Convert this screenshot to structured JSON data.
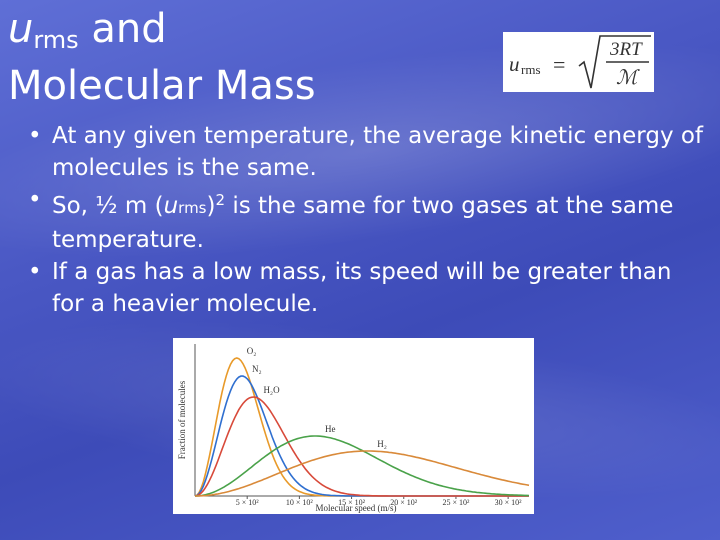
{
  "title": {
    "symbol": "u",
    "symbol_subscript": "rms",
    "line1_rest": " and",
    "line2": "Molecular Mass"
  },
  "formula": {
    "lhs": "u",
    "lhs_sub": "rms",
    "equals": "=",
    "numerator": "3RT",
    "denominator": "ℳ"
  },
  "bullets": {
    "b1": "At any given temperature, the average kinetic energy of molecules is the same.",
    "b2_a": "So, ½ m (",
    "b2_u": "u",
    "b2_sub": "rms",
    "b2_close": ")",
    "b2_sup": "2",
    "b2_b": " is the same for two gases at the same temperature.",
    "b3": "If a gas has a low mass, its speed will be greater than for a heavier molecule."
  },
  "chart_data": {
    "type": "line",
    "xlabel": "Molecular speed (m/s)",
    "ylabel": "Fraction of molecules",
    "x_ticks": [
      "5 × 10²",
      "10 × 10²",
      "15 × 10²",
      "20 × 10²",
      "25 × 10²",
      "30 × 10²"
    ],
    "xlim": [
      0,
      3200
    ],
    "ylim": [
      0,
      1
    ],
    "series": [
      {
        "name": "O₂",
        "color": "#e89a2a",
        "peak_x": 400,
        "peak_y": 0.92,
        "width": 260
      },
      {
        "name": "N₂",
        "color": "#2f6fd0",
        "peak_x": 450,
        "peak_y": 0.8,
        "width": 290
      },
      {
        "name": "H₂O",
        "color": "#d84a3a",
        "peak_x": 560,
        "peak_y": 0.66,
        "width": 360
      },
      {
        "name": "He",
        "color": "#4aa24a",
        "peak_x": 1150,
        "peak_y": 0.4,
        "width": 700
      },
      {
        "name": "H₂",
        "color": "#d98a3a",
        "peak_x": 1650,
        "peak_y": 0.3,
        "width": 1000
      }
    ]
  }
}
